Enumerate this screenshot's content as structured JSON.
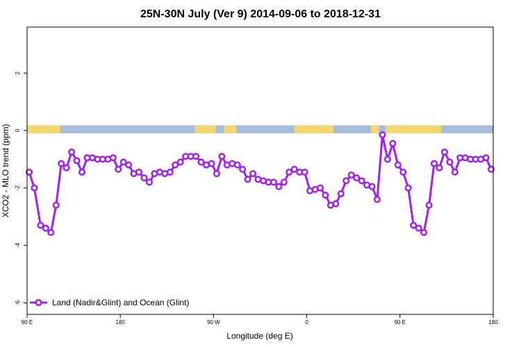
{
  "chart_data": {
    "type": "line",
    "title": "25N-30N July (Ver 9)   2014-09-06 to 2018-12-31",
    "xlabel": "Longitude (deg E)",
    "ylabel": "XCO2 - MLO trend (ppm)",
    "xlim": [
      90,
      540
    ],
    "ylim": [
      -6.4,
      3.6
    ],
    "x_ticks": [
      {
        "value": 90,
        "label": "90 E"
      },
      {
        "value": 180,
        "label": "180"
      },
      {
        "value": 270,
        "label": "90 W"
      },
      {
        "value": 360,
        "label": "0"
      },
      {
        "value": 450,
        "label": "90 E"
      },
      {
        "value": 540,
        "label": "180"
      }
    ],
    "y_ticks": [
      {
        "value": 2,
        "label": "2"
      },
      {
        "value": 0,
        "label": "0"
      },
      {
        "value": -2,
        "label": "-2"
      },
      {
        "value": -4,
        "label": "-4"
      },
      {
        "value": -6,
        "label": "-6"
      }
    ],
    "grid": false,
    "legend_position": "bottom-left",
    "colors": {
      "line": "#a020f0",
      "land": "#f5d76e",
      "ocean": "#a4bddb"
    },
    "surface_band": {
      "y_range": [
        -0.1,
        0.18
      ],
      "land_segments": [
        [
          90,
          122
        ],
        [
          252,
          272
        ],
        [
          280,
          292
        ],
        [
          348,
          386
        ],
        [
          422,
          430
        ],
        [
          436,
          490
        ]
      ]
    },
    "series": [
      {
        "name": "Land (Nadir&Glint) and Ocean (Glint)",
        "x": [
          92,
          97,
          103,
          108,
          113,
          118,
          123,
          128,
          133,
          138,
          143,
          148,
          153,
          158,
          163,
          168,
          173,
          178,
          183,
          188,
          193,
          198,
          203,
          208,
          213,
          218,
          223,
          228,
          233,
          238,
          243,
          248,
          253,
          258,
          263,
          268,
          273,
          278,
          283,
          288,
          293,
          298,
          303,
          308,
          313,
          318,
          323,
          328,
          333,
          338,
          343,
          348,
          353,
          358,
          363,
          368,
          373,
          378,
          383,
          388,
          393,
          398,
          403,
          408,
          413,
          418,
          423,
          428,
          433,
          438,
          443,
          448,
          453,
          458,
          463,
          468,
          473,
          478,
          483,
          488,
          493,
          498,
          503,
          508,
          513,
          518,
          523,
          528,
          533,
          538
        ],
        "values": [
          -1.45,
          -2.0,
          -3.3,
          -3.4,
          -3.55,
          -2.6,
          -1.15,
          -1.3,
          -0.75,
          -1.05,
          -1.45,
          -0.95,
          -0.95,
          -1.0,
          -1.0,
          -1.0,
          -0.95,
          -1.35,
          -1.1,
          -1.2,
          -1.5,
          -1.45,
          -1.65,
          -1.8,
          -1.5,
          -1.45,
          -1.5,
          -1.45,
          -1.2,
          -1.1,
          -0.9,
          -0.9,
          -0.9,
          -1.1,
          -1.2,
          -1.15,
          -1.5,
          -0.9,
          -1.2,
          -1.15,
          -1.2,
          -1.35,
          -1.7,
          -1.5,
          -1.7,
          -1.75,
          -1.8,
          -1.8,
          -1.95,
          -1.8,
          -1.45,
          -1.35,
          -1.45,
          -1.45,
          -2.1,
          -2.05,
          -2.0,
          -2.25,
          -2.6,
          -2.55,
          -2.2,
          -1.75,
          -1.55,
          -1.65,
          -1.75,
          -1.9,
          -1.95,
          -2.4,
          -0.15,
          -1.0,
          -0.45,
          -1.2,
          -1.45,
          -2.0,
          -3.3,
          -3.4,
          -3.55,
          -2.6,
          -1.15,
          -1.3,
          -0.75,
          -1.1,
          -1.45,
          -0.95,
          -0.95,
          -1.0,
          -1.0,
          -1.0,
          -0.95,
          -1.35
        ]
      }
    ]
  }
}
